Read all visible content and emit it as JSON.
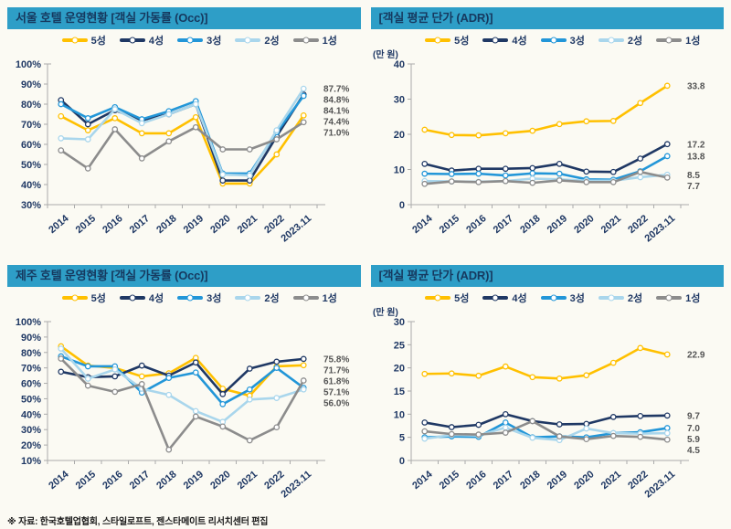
{
  "colors": {
    "header_bg": "#2E9EC7",
    "header_text": "#16395F",
    "axis_text": "#1F3864",
    "end_label_text": "#545454",
    "star5": "#FFC000",
    "star4": "#1F3864",
    "star3": "#2296D8",
    "star2": "#A9D6EC",
    "star1": "#8C8C8C"
  },
  "legend": [
    {
      "label": "5성",
      "color": "#FFC000"
    },
    {
      "label": "4성",
      "color": "#1F3864"
    },
    {
      "label": "3성",
      "color": "#2296D8"
    },
    {
      "label": "2성",
      "color": "#A9D6EC"
    },
    {
      "label": "1성",
      "color": "#8C8C8C"
    }
  ],
  "footer": {
    "source": "※ 자료: 한국호텔업협회, 스타일로프트, 젠스타메이트 리서치센터 편집"
  },
  "chart_data": [
    {
      "id": "seoul-occ",
      "type": "line",
      "title": "서울 호텔 운영현황 [객실 가동률 (Occ)]",
      "unit": "",
      "yfmt": "percent",
      "ylim": [
        30,
        100
      ],
      "ystep": 10,
      "grid": false,
      "legend_position": "top",
      "categories": [
        "2014",
        "2015",
        "2016",
        "2017",
        "2018",
        "2019",
        "2020",
        "2021",
        "2022",
        "2023.11"
      ],
      "series": [
        {
          "name": "5성",
          "color": "#FFC000",
          "values": [
            74,
            67,
            73,
            65.5,
            65.5,
            73.5,
            40.5,
            40.5,
            55,
            74.4
          ],
          "end_label": "74.4%"
        },
        {
          "name": "4성",
          "color": "#1F3864",
          "values": [
            82,
            70,
            77,
            72,
            75,
            80,
            42,
            42,
            64,
            84.8
          ],
          "end_label": "84.8%"
        },
        {
          "name": "3성",
          "color": "#2296D8",
          "values": [
            80,
            73,
            78.5,
            72.5,
            76.5,
            81.5,
            45.5,
            45.5,
            66,
            84.1
          ],
          "end_label": "84.1%"
        },
        {
          "name": "2성",
          "color": "#A9D6EC",
          "values": [
            63,
            62.5,
            77.5,
            70.5,
            75,
            80,
            45,
            44.5,
            67,
            87.7
          ],
          "end_label": "87.7%"
        },
        {
          "name": "1성",
          "color": "#8C8C8C",
          "values": [
            57,
            48,
            67.5,
            53,
            61.5,
            68.5,
            57.5,
            57.5,
            62.5,
            71.0
          ],
          "end_label": "71.0%"
        }
      ]
    },
    {
      "id": "seoul-adr",
      "type": "line",
      "title": "[객실 평균 단가 (ADR)]",
      "unit": "(만 원)",
      "yfmt": "number",
      "ylim": [
        0,
        40
      ],
      "ystep": 10,
      "grid": false,
      "legend_position": "top",
      "categories": [
        "2014",
        "2015",
        "2016",
        "2017",
        "2018",
        "2019",
        "2020",
        "2021",
        "2022",
        "2023.11"
      ],
      "series": [
        {
          "name": "5성",
          "color": "#FFC000",
          "values": [
            21.3,
            19.8,
            19.7,
            20.3,
            21.0,
            22.9,
            23.7,
            23.8,
            28.9,
            33.8
          ],
          "end_label": "33.8"
        },
        {
          "name": "4성",
          "color": "#1F3864",
          "values": [
            11.6,
            9.7,
            10.2,
            10.2,
            10.4,
            11.6,
            9.4,
            9.3,
            13.1,
            17.2
          ],
          "end_label": "17.2"
        },
        {
          "name": "3성",
          "color": "#2296D8",
          "values": [
            8.8,
            8.7,
            8.8,
            8.3,
            8.9,
            8.8,
            7.2,
            7.1,
            9.5,
            13.8
          ],
          "end_label": "13.8"
        },
        {
          "name": "2성",
          "color": "#A9D6EC",
          "values": [
            6.7,
            6.6,
            6.5,
            6.7,
            7.4,
            7.2,
            6.8,
            6.8,
            7.8,
            8.5
          ],
          "end_label": "8.5"
        },
        {
          "name": "1성",
          "color": "#8C8C8C",
          "values": [
            5.9,
            6.6,
            6.4,
            6.7,
            6.2,
            6.9,
            6.4,
            6.4,
            9.3,
            7.7
          ],
          "end_label": "7.7"
        }
      ]
    },
    {
      "id": "jeju-occ",
      "type": "line",
      "title": "제주 호텔 운영현황 [객실 가동률 (Occ)]",
      "unit": "",
      "yfmt": "percent",
      "ylim": [
        10,
        100
      ],
      "ystep": 10,
      "grid": false,
      "legend_position": "top",
      "categories": [
        "2014",
        "2015",
        "2016",
        "2017",
        "2018",
        "2019",
        "2020",
        "2021",
        "2022",
        "2023.11"
      ],
      "series": [
        {
          "name": "5성",
          "color": "#FFC000",
          "values": [
            84,
            71.5,
            70,
            64.5,
            66.5,
            76.5,
            56.5,
            52,
            71,
            71.7
          ],
          "end_label": "71.7%"
        },
        {
          "name": "4성",
          "color": "#1F3864",
          "values": [
            67.5,
            64,
            64.5,
            71.5,
            65,
            73.5,
            53,
            69.5,
            74,
            75.8
          ],
          "end_label": "75.8%"
        },
        {
          "name": "3성",
          "color": "#2296D8",
          "values": [
            77.5,
            71,
            71,
            54,
            63.5,
            67,
            46.5,
            56,
            70,
            57.1
          ],
          "end_label": "57.1%"
        },
        {
          "name": "2성",
          "color": "#A9D6EC",
          "values": [
            82.5,
            63,
            69,
            56.5,
            52.5,
            42,
            35,
            49.5,
            50.5,
            56.0
          ],
          "end_label": "56.0%"
        },
        {
          "name": "1성",
          "color": "#8C8C8C",
          "values": [
            76,
            58.5,
            54.5,
            59.5,
            17,
            38.5,
            32,
            23,
            31.5,
            61.8
          ],
          "end_label": "61.8%"
        }
      ]
    },
    {
      "id": "jeju-adr",
      "type": "line",
      "title": "[객실 평균 단가 (ADR)]",
      "unit": "(만 원)",
      "yfmt": "number",
      "ylim": [
        0,
        30
      ],
      "ystep": 5,
      "grid": false,
      "legend_position": "top",
      "categories": [
        "2014",
        "2015",
        "2016",
        "2017",
        "2018",
        "2019",
        "2020",
        "2021",
        "2022",
        "2023.11"
      ],
      "series": [
        {
          "name": "5성",
          "color": "#FFC000",
          "values": [
            18.7,
            18.8,
            18.3,
            20.3,
            18.0,
            17.7,
            18.4,
            21.1,
            24.3,
            22.9
          ],
          "end_label": "22.9"
        },
        {
          "name": "4성",
          "color": "#1F3864",
          "values": [
            8.2,
            7.2,
            7.7,
            10.0,
            8.5,
            7.8,
            7.9,
            9.4,
            9.6,
            9.7
          ],
          "end_label": "9.7"
        },
        {
          "name": "3성",
          "color": "#2296D8",
          "values": [
            5.0,
            5.2,
            5.1,
            8.2,
            5.0,
            5.2,
            5.0,
            5.9,
            6.1,
            7.0
          ],
          "end_label": "7.0"
        },
        {
          "name": "2성",
          "color": "#A9D6EC",
          "values": [
            4.7,
            5.5,
            5.4,
            7.1,
            4.9,
            4.4,
            6.9,
            5.9,
            5.8,
            5.9
          ],
          "end_label": "5.9"
        },
        {
          "name": "1성",
          "color": "#8C8C8C",
          "values": [
            6.3,
            5.7,
            5.6,
            6.0,
            8.5,
            5.2,
            4.6,
            5.3,
            5.1,
            4.5
          ],
          "end_label": "4.5"
        }
      ]
    }
  ]
}
